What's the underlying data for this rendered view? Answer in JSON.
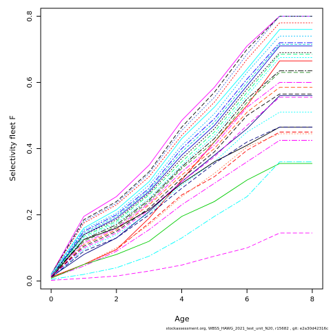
{
  "chart_data": {
    "type": "line",
    "title": "",
    "xlabel": "Age",
    "ylabel": "Selectivity fleet F",
    "xlim": [
      -0.32,
      8.32
    ],
    "ylim": [
      -0.024,
      0.824
    ],
    "x": [
      0,
      1,
      2,
      3,
      4,
      5,
      6,
      7,
      8
    ],
    "xticks": [
      "0",
      "2",
      "4",
      "6",
      "8"
    ],
    "yticks": [
      "0.0",
      "0.2",
      "0.4",
      "0.6",
      "0.8"
    ],
    "grid": false,
    "legend": "none",
    "footer_note": "stockassessment.org, WBSS_HAWG_2021_test_unit_N20, r15682 , git: e2a30d42316c",
    "series": [
      {
        "color": "#ff00ff",
        "dash": "solid",
        "values": [
          0.02,
          0.195,
          0.255,
          0.35,
          0.485,
          0.585,
          0.71,
          0.8,
          0.8
        ]
      },
      {
        "color": "#000000",
        "dash": "6,3",
        "values": [
          0.02,
          0.185,
          0.24,
          0.33,
          0.465,
          0.57,
          0.7,
          0.8,
          0.8
        ]
      },
      {
        "color": "#4169e1",
        "dash": "2,2",
        "values": [
          0.02,
          0.18,
          0.235,
          0.325,
          0.455,
          0.555,
          0.685,
          0.8,
          0.8
        ]
      },
      {
        "color": "#ff0000",
        "dash": "2,2",
        "values": [
          0.02,
          0.175,
          0.23,
          0.315,
          0.44,
          0.54,
          0.67,
          0.78,
          0.78
        ]
      },
      {
        "color": "#00ffff",
        "dash": "solid",
        "values": [
          0.02,
          0.16,
          0.215,
          0.3,
          0.43,
          0.525,
          0.64,
          0.76,
          0.76
        ]
      },
      {
        "color": "#00bfff",
        "dash": "2,2",
        "values": [
          0.02,
          0.155,
          0.205,
          0.29,
          0.41,
          0.505,
          0.63,
          0.74,
          0.74
        ]
      },
      {
        "color": "#0000ff",
        "dash": "8,2,2,2",
        "values": [
          0.015,
          0.15,
          0.2,
          0.28,
          0.4,
          0.49,
          0.61,
          0.72,
          0.72
        ]
      },
      {
        "color": "#00ced1",
        "dash": "4,2",
        "values": [
          0.015,
          0.145,
          0.195,
          0.275,
          0.39,
          0.48,
          0.6,
          0.715,
          0.715
        ]
      },
      {
        "color": "#0000cd",
        "dash": "solid",
        "values": [
          0.015,
          0.14,
          0.19,
          0.27,
          0.38,
          0.47,
          0.59,
          0.71,
          0.71
        ]
      },
      {
        "color": "#000000",
        "dash": "2,2",
        "values": [
          0.015,
          0.14,
          0.185,
          0.265,
          0.37,
          0.46,
          0.58,
          0.69,
          0.69
        ]
      },
      {
        "color": "#00ff7f",
        "dash": "6,3",
        "values": [
          0.015,
          0.135,
          0.18,
          0.26,
          0.36,
          0.45,
          0.57,
          0.685,
          0.685
        ]
      },
      {
        "color": "#00ffff",
        "dash": "2,2",
        "values": [
          0.015,
          0.13,
          0.175,
          0.25,
          0.35,
          0.44,
          0.56,
          0.675,
          0.675
        ]
      },
      {
        "color": "#ff0000",
        "dash": "solid",
        "values": [
          0.012,
          0.05,
          0.095,
          0.19,
          0.305,
          0.42,
          0.53,
          0.665,
          0.665
        ]
      },
      {
        "color": "#000000",
        "dash": "8,2,2,2",
        "values": [
          0.015,
          0.125,
          0.17,
          0.245,
          0.345,
          0.43,
          0.55,
          0.635,
          0.635
        ]
      },
      {
        "color": "#228b22",
        "dash": "6,3",
        "values": [
          0.015,
          0.12,
          0.165,
          0.24,
          0.34,
          0.42,
          0.54,
          0.63,
          0.63
        ]
      },
      {
        "color": "#ff00ff",
        "dash": "8,2,2,2",
        "values": [
          0.015,
          0.115,
          0.16,
          0.235,
          0.33,
          0.41,
          0.525,
          0.6,
          0.6
        ]
      },
      {
        "color": "#ff4500",
        "dash": "6,3",
        "values": [
          0.012,
          0.11,
          0.155,
          0.23,
          0.32,
          0.4,
          0.51,
          0.585,
          0.585
        ]
      },
      {
        "color": "#000000",
        "dash": "6,3",
        "values": [
          0.012,
          0.105,
          0.15,
          0.22,
          0.31,
          0.39,
          0.5,
          0.565,
          0.565
        ]
      },
      {
        "color": "#000080",
        "dash": "solid",
        "values": [
          0.012,
          0.08,
          0.13,
          0.21,
          0.3,
          0.38,
          0.46,
          0.56,
          0.56
        ]
      },
      {
        "color": "#ff00ff",
        "dash": "6,3",
        "values": [
          0.012,
          0.1,
          0.145,
          0.215,
          0.3,
          0.375,
          0.47,
          0.555,
          0.555
        ]
      },
      {
        "color": "#00ffff",
        "dash": "2,2",
        "values": [
          0.01,
          0.095,
          0.14,
          0.205,
          0.29,
          0.36,
          0.45,
          0.51,
          0.51
        ]
      },
      {
        "color": "#000000",
        "dash": "solid",
        "values": [
          0.01,
          0.125,
          0.16,
          0.215,
          0.295,
          0.36,
          0.41,
          0.465,
          0.465
        ]
      },
      {
        "color": "#000080",
        "dash": "6,3",
        "values": [
          0.01,
          0.09,
          0.13,
          0.2,
          0.28,
          0.355,
          0.42,
          0.465,
          0.465
        ]
      },
      {
        "color": "#ff0000",
        "dash": "6,3",
        "values": [
          0.01,
          0.05,
          0.095,
          0.175,
          0.26,
          0.315,
          0.395,
          0.45,
          0.45
        ]
      },
      {
        "color": "#ff00ff",
        "dash": "8,2,2,2",
        "values": [
          0.01,
          0.045,
          0.09,
          0.155,
          0.23,
          0.295,
          0.36,
          0.425,
          0.425
        ]
      },
      {
        "color": "#ff7f50",
        "dash": "2,2",
        "values": [
          0.01,
          0.05,
          0.1,
          0.17,
          0.255,
          0.325,
          0.405,
          0.445,
          0.445
        ]
      },
      {
        "color": "#00cc00",
        "dash": "solid",
        "values": [
          0.008,
          0.05,
          0.08,
          0.12,
          0.195,
          0.24,
          0.305,
          0.355,
          0.355
        ]
      },
      {
        "color": "#00ffff",
        "dash": "8,2,2,2",
        "values": [
          0.005,
          0.02,
          0.04,
          0.075,
          0.13,
          0.195,
          0.255,
          0.36,
          0.36
        ]
      },
      {
        "color": "#ff00ff",
        "dash": "6,3",
        "values": [
          0.002,
          0.008,
          0.015,
          0.03,
          0.048,
          0.075,
          0.1,
          0.145,
          0.145
        ]
      }
    ]
  }
}
